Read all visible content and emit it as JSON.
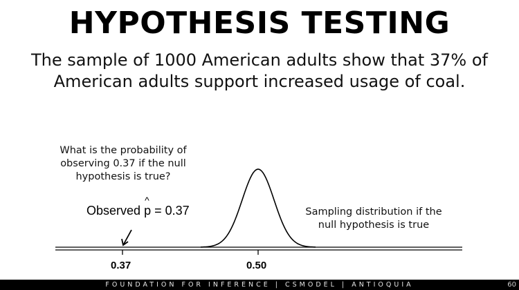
{
  "slide": {
    "title": "HYPOTHESIS TESTING",
    "subtitle": "The sample of 1000 American adults show that 37% of American adults support increased usage of coal."
  },
  "annotations": {
    "question": "What is the probability of observing 0.37 if the null hypothesis is true?",
    "observed_prefix": "Observed",
    "observed_symbol": "p",
    "observed_hat": "^",
    "observed_suffix": "= 0.37",
    "sampling_label": "Sampling distribution if the null hypothesis is true"
  },
  "axis": {
    "ticks": [
      {
        "value": 0.37,
        "label": "0.37"
      },
      {
        "value": 0.5,
        "label": "0.50"
      }
    ]
  },
  "distribution": {
    "mean": 0.5,
    "observed": 0.37
  },
  "footer": {
    "text": "FOUNDATION FOR INFERENCE | CSMODEL | ANTIOQUIA",
    "page_number": "60"
  }
}
